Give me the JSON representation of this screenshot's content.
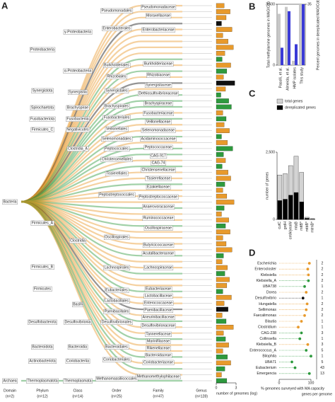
{
  "tree": {
    "panel": "A",
    "domains": [
      "Bacteria",
      "Archaea"
    ],
    "phyla": [
      "Proteobacteria",
      "Synergistota",
      "Spirochaetota",
      "Fusobacteriota",
      "Firmicutes_C",
      "Firmicutes_A",
      "Firmicutes_B",
      "Firmicutes",
      "Desulfobacterota",
      "Bacteroidota",
      "Actinobacteriota",
      "Thermoplasmatota"
    ],
    "classes": [
      "γ-Proteobacteria",
      "α-Proteobacteria",
      "Synergistia",
      "Brachyspirae",
      "Fusobacteriia",
      "Negativicutes",
      "Clostridia_A",
      "Clostridia",
      "Bacilli",
      "Desulfovibrionia",
      "Bacteroidia",
      "Coriobacteriia",
      "Thermoplasmata"
    ],
    "orders": [
      "Pseudomonadales",
      "Enterobacterales",
      "Burkholderiales",
      "Rhizobiales",
      "Synergistales",
      "Brachyspirales",
      "Fusobacteriales",
      "Veillonellales",
      "Selenomonadales",
      "Peptococcales",
      "Christensenellales",
      "Tissierellales",
      "Peptostreptococcales",
      "Oscillospirales",
      "Lachnospirales",
      "Eubacteriales",
      "Lactobacillales",
      "Paenibacillales",
      "Desulfovibrionales",
      "Bacteroidales",
      "Coriobacteriales",
      "Methanomassiliicoccales"
    ],
    "families": [
      "Pseudomonadaceae",
      "Moraxellaceae",
      "Enterobacteriaceae",
      "Burkholderiaceae",
      "Rhizobiaceae",
      "Synergistaceae",
      "Dethiosulfovibrionaceae",
      "Brachyspiraceae",
      "Fusobacteriaceae",
      "Veillonellaceae",
      "Selenomonadaceae",
      "Acidaminococcaceae",
      "Peptococcaceae",
      "CAG-917",
      "CAG-74",
      "Christensenellaceae",
      "Tissierellaceae",
      "Ezakiellaceae",
      "Peptostreptococcaceae",
      "Anaerovoracaceae",
      "Ruminococcaceae",
      "Oscillospiraceae",
      "Butyricicoccaceae",
      "Acutalibacteraceae",
      "Lachnospiraceae",
      "Eubacteriaceae",
      "Lactobacillaceae",
      "Enterococcaceae",
      "Paenibacillaceae",
      "Aneurinibacillaceae",
      "Desulfovibrionaceae",
      "Tannerellaceae",
      "Marinifilaceae",
      "Rikenellaceae",
      "Bacteroidaceae",
      "Coriobacteriaceae",
      "Methanomethylophilaceae"
    ],
    "rank_labels": [
      {
        "rank": "Domain",
        "n": "(n=2)"
      },
      {
        "rank": "Phylum",
        "n": "(n=12)"
      },
      {
        "rank": "Class",
        "n": "(n=14)"
      },
      {
        "rank": "Order",
        "n": "(n=25)"
      },
      {
        "rank": "Family",
        "n": "(n=47)"
      },
      {
        "rank": "Genus",
        "n": "(n=128)"
      }
    ]
  },
  "chart_data": [
    {
      "type": "hbar",
      "xlabel": "number of genomes (log)",
      "xlim": [
        0,
        3
      ],
      "xticks": [
        0,
        3
      ],
      "values": [
        1.2,
        2.1,
        1.5,
        0.8,
        2.4,
        1.0,
        1.8,
        2.6,
        1.3,
        0.9,
        2.2,
        1.6,
        1.1,
        2.8,
        1.4,
        0.7,
        1.9,
        2.3,
        1.0,
        1.5,
        1.2,
        2.0,
        0.8,
        1.7,
        2.5,
        1.1,
        1.4,
        0.9,
        1.8,
        2.2,
        1.3,
        1.0,
        1.6,
        2.7,
        1.2,
        0.8,
        1.9,
        1.4,
        2.1,
        1.0,
        1.5,
        2.4,
        1.1,
        0.9,
        1.7,
        1.3,
        2.0,
        1.6,
        1.0,
        2.3,
        1.2,
        1.8,
        0.9,
        1.5,
        2.6,
        1.1,
        1.4,
        1.9,
        1.0,
        1.7,
        2.2,
        1.3,
        0.8,
        1.6
      ],
      "colors": [
        "#e89a2c",
        "#e89a2c",
        "#e89a2c",
        "#111111",
        "#e89a2c",
        "#e89a2c",
        "#e89a2c",
        "#e89a2c",
        "#e89a2c",
        "#2e9a3e",
        "#e89a2c",
        "#2e9a3e",
        "#e89a2c",
        "#111111",
        "#e89a2c",
        "#2e9a3e",
        "#2e9a3e",
        "#2e9a3e",
        "#e89a2c",
        "#2e9a3e",
        "#e89a2c",
        "#e89a2c",
        "#2e9a3e",
        "#e89a2c",
        "#2e9a3e",
        "#2e9a3e",
        "#e89a2c",
        "#2e9a3e",
        "#e89a2c",
        "#e89a2c",
        "#2e9a3e",
        "#e89a2c",
        "#e89a2c",
        "#e89a2c",
        "#2e9a3e",
        "#e89a2c",
        "#e89a2c",
        "#2e9a3e",
        "#e89a2c",
        "#e89a2c",
        "#e89a2c",
        "#e89a2c",
        "#2e9a3e",
        "#e89a2c",
        "#e89a2c",
        "#2e9a3e",
        "#e89a2c",
        "#e89a2c",
        "#2e9a3e",
        "#e89a2c",
        "#e89a2c",
        "#111111",
        "#e89a2c",
        "#2e9a3e",
        "#e89a2c",
        "#e89a2c",
        "#2e9a3e",
        "#e89a2c",
        "#e89a2c",
        "#2e9a3e",
        "#e89a2c",
        "#2e9a3e",
        "#e89a2c",
        "#2e9a3e"
      ]
    },
    {
      "type": "bar",
      "panel": "B",
      "categories": [
        "Pasolli, et al.",
        "Almeida, et al.",
        "HMP isolates",
        "This study"
      ],
      "ylabel": "Total methylamine genomes in MAGICdb",
      "y2label": "Percent genomes in dereplicated MAGICdb",
      "ylim": [
        0,
        3500
      ],
      "yticks": [
        0,
        {
          "value": 3500,
          "label": "3,500"
        }
      ],
      "y2lim": [
        0,
        35
      ],
      "y2ticks": [
        35
      ],
      "series": [
        {
          "color": "#c8c8c8",
          "values": [
            2950,
            3350,
            250,
            3500
          ]
        },
        {
          "color": "#3b3bd6",
          "axis": "y2",
          "values": [
            10,
            31,
            12,
            35
          ]
        }
      ]
    },
    {
      "type": "bar",
      "panel": "C",
      "categories": [
        "cutC",
        "grdH",
        "cntA/yeaW",
        "mtaB",
        "mttB*",
        "mtbB*",
        "mtmB*"
      ],
      "category_colors": [
        "#e08a1e",
        "#e08a1e",
        "#e08a1e",
        "#2e9a3e",
        "#2e9a3e",
        "#111111",
        "#111111"
      ],
      "ylabel": "number of genes",
      "ylim": [
        0,
        2500
      ],
      "yticks": [
        0,
        {
          "value": 2500,
          "label": "2,500"
        }
      ],
      "series": [
        {
          "name": "total genes",
          "color": "#d3d3d3",
          "values": [
            1650,
            1700,
            2000,
            2350,
            1750,
            80,
            30
          ]
        },
        {
          "name": "dereplicated genes",
          "color": "#000000",
          "values": [
            700,
            750,
            900,
            1000,
            650,
            40,
            10
          ]
        }
      ]
    },
    {
      "type": "dot",
      "panel": "D",
      "categories": [
        "Escherichia",
        "Enterocloster",
        "Klebsiella",
        "Klebsiella_A",
        "UBA738",
        "Dorea",
        "Desulfovibrio",
        "Hungatella",
        "Sellimonas",
        "Faecalimonas",
        "Blautia",
        "Clostridium",
        "CAG-238",
        "Collinsella",
        "Klebsiella_B",
        "Enterococcus_A",
        "Bilophila",
        "UBA71",
        "Eubacterium",
        "Emergencia"
      ],
      "values": [
        95,
        90,
        92,
        92,
        80,
        85,
        75,
        88,
        85,
        80,
        70,
        60,
        70,
        65,
        90,
        85,
        100,
        40,
        50,
        95
      ],
      "colors": [
        "#e89a2c",
        "#e89a2c",
        "#e89a2c",
        "#2e9a3e",
        "#2e9a3e",
        "#e89a2c",
        "#111111",
        "#e89a2c",
        "#e89a2c",
        "#e89a2c",
        "#e89a2c",
        "#e89a2c",
        "#2e9a3e",
        "#2e9a3e",
        "#e89a2c",
        "#2e9a3e",
        "#2e9a3e",
        "#2e9a3e",
        "#2e9a3e",
        "#2e9a3e"
      ],
      "xlim": [
        0,
        100
      ],
      "xticks": [
        0,
        100
      ],
      "xlabel": "% genomes surveyed with MA capacity",
      "genes_label": "genes per genome",
      "genes_per_genome": [
        2,
        2,
        2,
        2,
        1,
        2,
        1,
        2,
        2,
        2,
        1,
        1,
        3,
        1,
        3,
        5,
        1,
        5,
        43,
        13
      ]
    }
  ]
}
